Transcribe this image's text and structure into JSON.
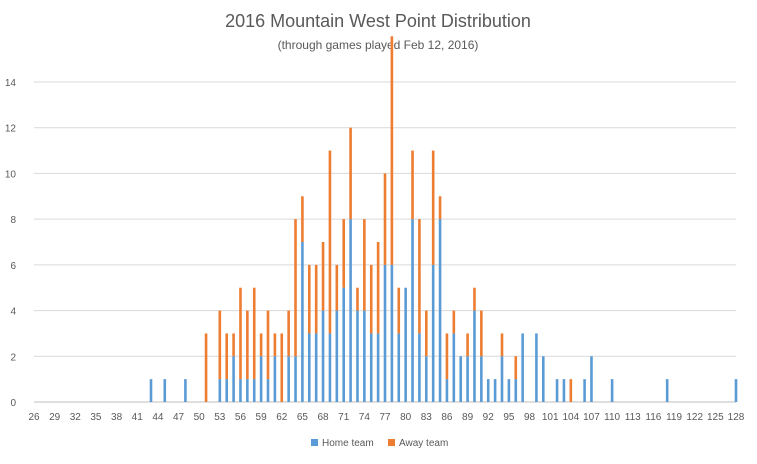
{
  "chart_data": {
    "type": "bar",
    "stacked": true,
    "title": "2016 Mountain West Point Distribution",
    "subtitle": "(through games played Feb 12, 2016)",
    "xlabel": "",
    "ylabel": "",
    "xlim": [
      26,
      128
    ],
    "ylim": [
      0,
      14
    ],
    "y_ticks": [
      0,
      2,
      4,
      6,
      8,
      10,
      12,
      14
    ],
    "x_ticks": [
      26,
      29,
      32,
      35,
      38,
      41,
      44,
      47,
      50,
      53,
      56,
      59,
      62,
      65,
      68,
      71,
      74,
      77,
      80,
      83,
      86,
      89,
      92,
      95,
      98,
      101,
      104,
      107,
      110,
      113,
      116,
      119,
      122,
      125,
      128
    ],
    "grid": "horizontal",
    "legend_position": "bottom",
    "series": [
      {
        "name": "Home team",
        "color": "#5b9bd5",
        "points": [
          [
            43,
            1
          ],
          [
            45,
            1
          ],
          [
            48,
            1
          ],
          [
            53,
            1
          ],
          [
            54,
            1
          ],
          [
            55,
            2
          ],
          [
            56,
            1
          ],
          [
            57,
            1
          ],
          [
            58,
            1
          ],
          [
            59,
            2
          ],
          [
            60,
            1
          ],
          [
            61,
            2
          ],
          [
            63,
            2
          ],
          [
            64,
            2
          ],
          [
            65,
            7
          ],
          [
            66,
            3
          ],
          [
            67,
            3
          ],
          [
            68,
            4
          ],
          [
            69,
            3
          ],
          [
            70,
            4
          ],
          [
            71,
            5
          ],
          [
            72,
            8
          ],
          [
            73,
            4
          ],
          [
            74,
            4
          ],
          [
            75,
            3
          ],
          [
            76,
            3
          ],
          [
            77,
            6
          ],
          [
            78,
            6
          ],
          [
            79,
            3
          ],
          [
            80,
            5
          ],
          [
            81,
            8
          ],
          [
            82,
            3
          ],
          [
            83,
            2
          ],
          [
            84,
            6
          ],
          [
            85,
            8
          ],
          [
            86,
            1
          ],
          [
            87,
            3
          ],
          [
            88,
            2
          ],
          [
            89,
            2
          ],
          [
            90,
            4
          ],
          [
            91,
            2
          ],
          [
            92,
            1
          ],
          [
            93,
            1
          ],
          [
            94,
            2
          ],
          [
            95,
            1
          ],
          [
            96,
            1
          ],
          [
            97,
            3
          ],
          [
            99,
            3
          ],
          [
            100,
            2
          ],
          [
            102,
            1
          ],
          [
            103,
            1
          ],
          [
            106,
            1
          ],
          [
            107,
            2
          ],
          [
            110,
            1
          ],
          [
            118,
            1
          ],
          [
            128,
            1
          ]
        ]
      },
      {
        "name": "Away team",
        "color": "#ed7d31",
        "points": [
          [
            51,
            3
          ],
          [
            53,
            3
          ],
          [
            54,
            2
          ],
          [
            55,
            1
          ],
          [
            56,
            4
          ],
          [
            57,
            3
          ],
          [
            58,
            4
          ],
          [
            59,
            1
          ],
          [
            60,
            3
          ],
          [
            61,
            1
          ],
          [
            62,
            3
          ],
          [
            63,
            2
          ],
          [
            64,
            6
          ],
          [
            65,
            2
          ],
          [
            66,
            3
          ],
          [
            67,
            3
          ],
          [
            68,
            3
          ],
          [
            69,
            8
          ],
          [
            70,
            2
          ],
          [
            71,
            3
          ],
          [
            72,
            4
          ],
          [
            73,
            1
          ],
          [
            74,
            4
          ],
          [
            75,
            3
          ],
          [
            76,
            4
          ],
          [
            77,
            4
          ],
          [
            78,
            10
          ],
          [
            79,
            2
          ],
          [
            80,
            0
          ],
          [
            81,
            3
          ],
          [
            82,
            5
          ],
          [
            83,
            2
          ],
          [
            84,
            5
          ],
          [
            85,
            1
          ],
          [
            86,
            2
          ],
          [
            87,
            1
          ],
          [
            88,
            0
          ],
          [
            89,
            1
          ],
          [
            90,
            1
          ],
          [
            91,
            2
          ],
          [
            92,
            0
          ],
          [
            94,
            1
          ],
          [
            96,
            1
          ],
          [
            98,
            0
          ],
          [
            104,
            1
          ]
        ]
      }
    ]
  }
}
